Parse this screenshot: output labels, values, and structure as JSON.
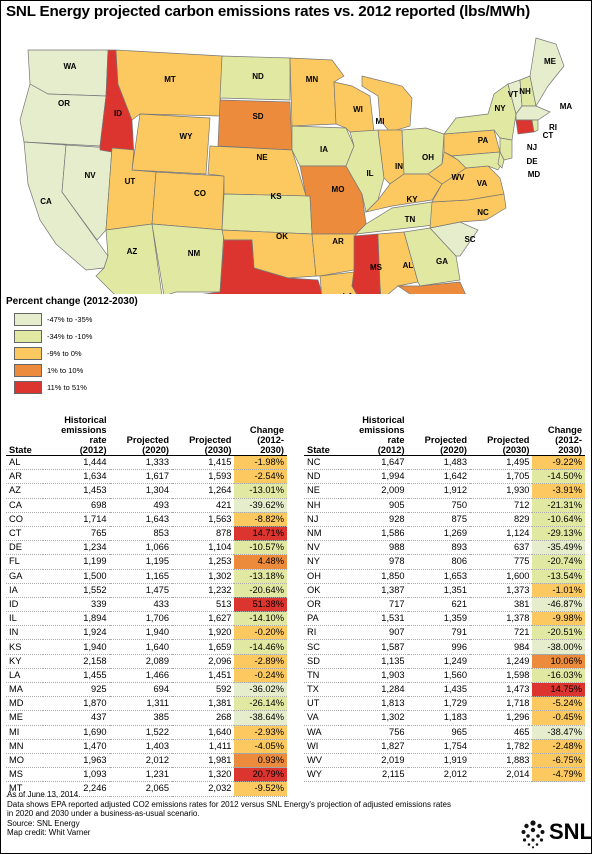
{
  "title": "SNL Energy projected carbon emissions rates vs. 2012 reported (lbs/MWh)",
  "colors": {
    "c1": "#e6edcc",
    "c2": "#e0e8a2",
    "c3": "#fbc960",
    "c4": "#ec8b3c",
    "c5": "#dc3530"
  },
  "legend": {
    "title": "Percent change (2012-2030)",
    "items": [
      {
        "label": "-47% to -35%",
        "color": "#e6edcc"
      },
      {
        "label": "-34% to -10%",
        "color": "#e0e8a2"
      },
      {
        "label": "-9% to 0%",
        "color": "#fbc960"
      },
      {
        "label": "1% to 10%",
        "color": "#ec8b3c"
      },
      {
        "label": "11% to 51%",
        "color": "#dc3530"
      }
    ]
  },
  "table_headers": {
    "state": "State",
    "hist": [
      "Historical",
      "emissions",
      "rate",
      "(2012)"
    ],
    "p2020": [
      "Projected",
      "(2020)"
    ],
    "p2030": [
      "Projected",
      "(2030)"
    ],
    "change": [
      "Change",
      "(2012-",
      "2030)"
    ]
  },
  "rows_left": [
    {
      "state": "AL",
      "h": "1,444",
      "p20": "1,333",
      "p30": "1,415",
      "ch": "-1.98%",
      "c": 3
    },
    {
      "state": "AR",
      "h": "1,634",
      "p20": "1,617",
      "p30": "1,593",
      "ch": "-2.54%",
      "c": 3
    },
    {
      "state": "AZ",
      "h": "1,453",
      "p20": "1,304",
      "p30": "1,264",
      "ch": "-13.01%",
      "c": 2
    },
    {
      "state": "CA",
      "h": "698",
      "p20": "493",
      "p30": "421",
      "ch": "-39.62%",
      "c": 1
    },
    {
      "state": "CO",
      "h": "1,714",
      "p20": "1,643",
      "p30": "1,563",
      "ch": "-8.82%",
      "c": 3
    },
    {
      "state": "CT",
      "h": "765",
      "p20": "853",
      "p30": "878",
      "ch": "14.71%",
      "c": 5
    },
    {
      "state": "DE",
      "h": "1,234",
      "p20": "1,066",
      "p30": "1,104",
      "ch": "-10.57%",
      "c": 2
    },
    {
      "state": "FL",
      "h": "1,199",
      "p20": "1,195",
      "p30": "1,253",
      "ch": "4.48%",
      "c": 4
    },
    {
      "state": "GA",
      "h": "1,500",
      "p20": "1,165",
      "p30": "1,302",
      "ch": "-13.18%",
      "c": 2
    },
    {
      "state": "IA",
      "h": "1,552",
      "p20": "1,475",
      "p30": "1,232",
      "ch": "-20.64%",
      "c": 2
    },
    {
      "state": "ID",
      "h": "339",
      "p20": "433",
      "p30": "513",
      "ch": "51.38%",
      "c": 5
    },
    {
      "state": "IL",
      "h": "1,894",
      "p20": "1,706",
      "p30": "1,627",
      "ch": "-14.10%",
      "c": 2
    },
    {
      "state": "IN",
      "h": "1,924",
      "p20": "1,940",
      "p30": "1,920",
      "ch": "-0.20%",
      "c": 3
    },
    {
      "state": "KS",
      "h": "1,940",
      "p20": "1,640",
      "p30": "1,659",
      "ch": "-14.46%",
      "c": 2
    },
    {
      "state": "KY",
      "h": "2,158",
      "p20": "2,089",
      "p30": "2,096",
      "ch": "-2.89%",
      "c": 3
    },
    {
      "state": "LA",
      "h": "1,455",
      "p20": "1,466",
      "p30": "1,451",
      "ch": "-0.24%",
      "c": 3
    },
    {
      "state": "MA",
      "h": "925",
      "p20": "694",
      "p30": "592",
      "ch": "-36.02%",
      "c": 1
    },
    {
      "state": "MD",
      "h": "1,870",
      "p20": "1,311",
      "p30": "1,381",
      "ch": "-26.14%",
      "c": 2
    },
    {
      "state": "ME",
      "h": "437",
      "p20": "385",
      "p30": "268",
      "ch": "-38.64%",
      "c": 1
    },
    {
      "state": "MI",
      "h": "1,690",
      "p20": "1,522",
      "p30": "1,640",
      "ch": "-2.93%",
      "c": 3
    },
    {
      "state": "MN",
      "h": "1,470",
      "p20": "1,403",
      "p30": "1,411",
      "ch": "-4.05%",
      "c": 3
    },
    {
      "state": "MO",
      "h": "1,963",
      "p20": "2,012",
      "p30": "1,981",
      "ch": "0.93%",
      "c": 4
    },
    {
      "state": "MS",
      "h": "1,093",
      "p20": "1,231",
      "p30": "1,320",
      "ch": "20.79%",
      "c": 5
    },
    {
      "state": "MT",
      "h": "2,246",
      "p20": "2,065",
      "p30": "2,032",
      "ch": "-9.52%",
      "c": 3
    }
  ],
  "rows_right": [
    {
      "state": "NC",
      "h": "1,647",
      "p20": "1,483",
      "p30": "1,495",
      "ch": "-9.22%",
      "c": 3
    },
    {
      "state": "ND",
      "h": "1,994",
      "p20": "1,642",
      "p30": "1,705",
      "ch": "-14.50%",
      "c": 2
    },
    {
      "state": "NE",
      "h": "2,009",
      "p20": "1,912",
      "p30": "1,930",
      "ch": "-3.91%",
      "c": 3
    },
    {
      "state": "NH",
      "h": "905",
      "p20": "750",
      "p30": "712",
      "ch": "-21.31%",
      "c": 2
    },
    {
      "state": "NJ",
      "h": "928",
      "p20": "875",
      "p30": "829",
      "ch": "-10.64%",
      "c": 2
    },
    {
      "state": "NM",
      "h": "1,586",
      "p20": "1,269",
      "p30": "1,124",
      "ch": "-29.13%",
      "c": 2
    },
    {
      "state": "NV",
      "h": "988",
      "p20": "893",
      "p30": "637",
      "ch": "-35.49%",
      "c": 1
    },
    {
      "state": "NY",
      "h": "978",
      "p20": "806",
      "p30": "775",
      "ch": "-20.74%",
      "c": 2
    },
    {
      "state": "OH",
      "h": "1,850",
      "p20": "1,653",
      "p30": "1,600",
      "ch": "-13.54%",
      "c": 2
    },
    {
      "state": "OK",
      "h": "1,387",
      "p20": "1,351",
      "p30": "1,373",
      "ch": "-1.01%",
      "c": 3
    },
    {
      "state": "OR",
      "h": "717",
      "p20": "621",
      "p30": "381",
      "ch": "-46.87%",
      "c": 1
    },
    {
      "state": "PA",
      "h": "1,531",
      "p20": "1,359",
      "p30": "1,378",
      "ch": "-9.98%",
      "c": 3
    },
    {
      "state": "RI",
      "h": "907",
      "p20": "791",
      "p30": "721",
      "ch": "-20.51%",
      "c": 2
    },
    {
      "state": "SC",
      "h": "1,587",
      "p20": "996",
      "p30": "984",
      "ch": "-38.00%",
      "c": 1
    },
    {
      "state": "SD",
      "h": "1,135",
      "p20": "1,249",
      "p30": "1,249",
      "ch": "10.06%",
      "c": 4
    },
    {
      "state": "TN",
      "h": "1,903",
      "p20": "1,560",
      "p30": "1,598",
      "ch": "-16.03%",
      "c": 2
    },
    {
      "state": "TX",
      "h": "1,284",
      "p20": "1,435",
      "p30": "1,473",
      "ch": "14.75%",
      "c": 5
    },
    {
      "state": "UT",
      "h": "1,813",
      "p20": "1,729",
      "p30": "1,718",
      "ch": "-5.24%",
      "c": 3
    },
    {
      "state": "VA",
      "h": "1,302",
      "p20": "1,183",
      "p30": "1,296",
      "ch": "-0.45%",
      "c": 3
    },
    {
      "state": "WA",
      "h": "756",
      "p20": "965",
      "p30": "465",
      "ch": "-38.47%",
      "c": 1
    },
    {
      "state": "WI",
      "h": "1,827",
      "p20": "1,754",
      "p30": "1,782",
      "ch": "-2.48%",
      "c": 3
    },
    {
      "state": "WV",
      "h": "2,019",
      "p20": "1,919",
      "p30": "1,883",
      "ch": "-6.75%",
      "c": 3
    },
    {
      "state": "WY",
      "h": "2,115",
      "p20": "2,012",
      "p30": "2,014",
      "ch": "-4.79%",
      "c": 3
    }
  ],
  "footer": [
    "As of June 13, 2014.",
    "Data shows EPA reported adjusted CO2 emissions rates for 2012 versus SNL Energy's projection of adjusted emissions rates",
    "in 2020 and 2030 under a business-as-usual scenario.",
    "Source: SNL Energy",
    "Map credit: Whit Varner"
  ],
  "logo_text": "SNL"
}
